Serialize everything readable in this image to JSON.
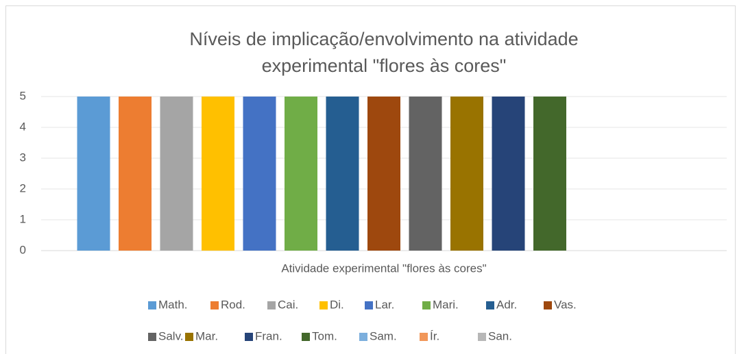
{
  "chart_data": {
    "type": "bar",
    "title": "Níveis de implicação/envolvimento na atividade experimental \"flores às cores\"",
    "categories": [
      "Atividade experimental \"flores às cores\""
    ],
    "series": [
      {
        "name": "Math.",
        "color": "#5b9bd5",
        "values": [
          5
        ]
      },
      {
        "name": "Rod.",
        "color": "#ed7d31",
        "values": [
          5
        ]
      },
      {
        "name": "Cai.",
        "color": "#a5a5a5",
        "values": [
          5
        ]
      },
      {
        "name": "Di.",
        "color": "#ffc000",
        "values": [
          5
        ]
      },
      {
        "name": "Lar.",
        "color": "#4472c4",
        "values": [
          5
        ]
      },
      {
        "name": "Mari.",
        "color": "#70ad47",
        "values": [
          5
        ]
      },
      {
        "name": "Adr.",
        "color": "#255e91",
        "values": [
          5
        ]
      },
      {
        "name": "Vas.",
        "color": "#9e480e",
        "values": [
          5
        ]
      },
      {
        "name": "Salv.",
        "color": "#636363",
        "values": [
          5
        ]
      },
      {
        "name": "Mar.",
        "color": "#997300",
        "values": [
          5
        ]
      },
      {
        "name": "Fran.",
        "color": "#264478",
        "values": [
          5
        ]
      },
      {
        "name": "Tom.",
        "color": "#43682b",
        "values": [
          5
        ]
      },
      {
        "name": "Sam.",
        "color": "#7cafdd",
        "values": [
          null
        ]
      },
      {
        "name": "Ír.",
        "color": "#f1975a",
        "values": [
          null
        ]
      },
      {
        "name": "San.",
        "color": "#b7b7b7",
        "values": [
          null
        ]
      }
    ],
    "ylim": [
      0,
      5
    ],
    "yticks": [
      0,
      1,
      2,
      3,
      4,
      5
    ],
    "grid": true,
    "legend": "bottom"
  }
}
